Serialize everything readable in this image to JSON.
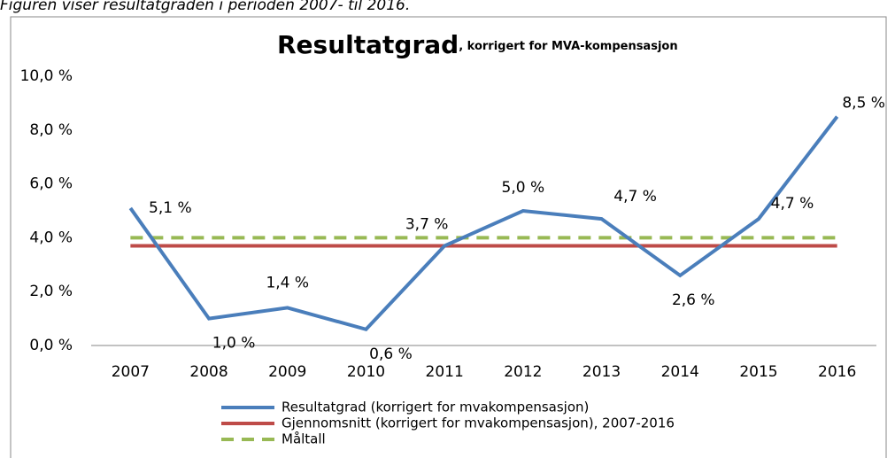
{
  "caption": "Figuren viser resultatgraden i perioden 2007- til 2016.",
  "chart_data": {
    "type": "line",
    "title": "Resultatgrad",
    "subtitle": ", korrigert for MVA-kompensasjon",
    "categories": [
      "2007",
      "2008",
      "2009",
      "2010",
      "2011",
      "2012",
      "2013",
      "2014",
      "2015",
      "2016"
    ],
    "series": [
      {
        "name": "Resultatgrad (korrigert for mvakompensasjon)",
        "color": "#4a7ebb",
        "dash": false,
        "values": [
          5.1,
          1.0,
          1.4,
          0.6,
          3.7,
          5.0,
          4.7,
          2.6,
          4.7,
          8.5
        ],
        "value_labels": [
          "5,1 %",
          "1,0 %",
          "1,4 %",
          "0,6 %",
          "3,7 %",
          "5,0 %",
          "4,7 %",
          "2,6 %",
          "4,7 %",
          "8,5 %"
        ]
      },
      {
        "name": "Gjennomsnitt (korrigert for mvakompensasjon), 2007-2016",
        "color": "#be4b48",
        "dash": false,
        "values": [
          3.7,
          3.7,
          3.7,
          3.7,
          3.7,
          3.7,
          3.7,
          3.7,
          3.7,
          3.7
        ]
      },
      {
        "name": "Måltall",
        "color": "#98b954",
        "dash": true,
        "values": [
          4.0,
          4.0,
          4.0,
          4.0,
          4.0,
          4.0,
          4.0,
          4.0,
          4.0,
          4.0
        ]
      }
    ],
    "ylim": [
      0,
      10
    ],
    "yticks": [
      {
        "value": 0,
        "label": "0,0 %"
      },
      {
        "value": 2,
        "label": "2,0 %"
      },
      {
        "value": 4,
        "label": "4,0 %"
      },
      {
        "value": 6,
        "label": "6,0 %"
      },
      {
        "value": 8,
        "label": "8,0 %"
      },
      {
        "value": 10,
        "label": "10,0 %"
      }
    ],
    "grid": false,
    "legend": "bottom"
  }
}
